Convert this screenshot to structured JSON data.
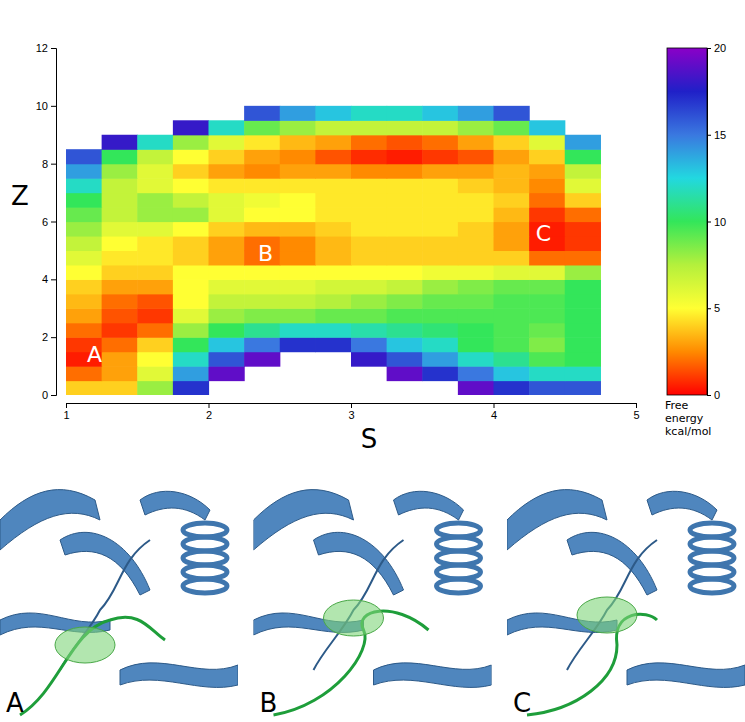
{
  "chart_data": {
    "type": "heatmap",
    "x_label": "S",
    "y_label": "Z",
    "xlim": [
      1,
      5
    ],
    "ylim": [
      0,
      12
    ],
    "xticks": [
      1,
      2,
      3,
      4,
      5
    ],
    "yticks": [
      0,
      2,
      4,
      6,
      8,
      10,
      12
    ],
    "s_edges": [
      1.0,
      1.25,
      1.5,
      1.75,
      2.0,
      2.25,
      2.5,
      2.75,
      3.0,
      3.25,
      3.5,
      3.75,
      4.0,
      4.25,
      4.5,
      4.75
    ],
    "z_edges": [
      0,
      0.5,
      1,
      1.5,
      2,
      2.5,
      3,
      3.5,
      4,
      4.5,
      5,
      5.5,
      6,
      6.5,
      7,
      7.5,
      8,
      8.5,
      9,
      9.5,
      10
    ],
    "cells": [
      [
        4,
        4,
        8,
        17,
        null,
        null,
        null,
        null,
        null,
        null,
        null,
        19,
        17,
        16,
        16
      ],
      [
        2,
        3,
        6,
        14,
        19,
        null,
        null,
        null,
        null,
        19,
        17,
        15,
        13,
        12,
        12
      ],
      [
        0.5,
        3,
        5,
        12,
        16,
        19,
        null,
        null,
        18,
        16,
        14,
        12,
        11,
        9.5,
        10
      ],
      [
        1,
        2,
        4,
        10,
        13,
        15,
        17,
        17,
        15,
        13,
        12,
        10,
        9.5,
        8.5,
        10
      ],
      [
        2,
        1,
        2,
        8,
        10,
        11,
        12,
        12,
        11.5,
        11,
        10.5,
        10,
        9.5,
        9,
        10
      ],
      [
        3,
        1.5,
        1,
        6,
        8,
        8.5,
        8.5,
        9,
        9,
        9.5,
        9.5,
        9.5,
        9.5,
        9.5,
        10
      ],
      [
        3.5,
        2,
        1.5,
        5,
        7,
        7,
        7,
        7.5,
        8,
        8.5,
        9,
        9,
        9.5,
        9.5,
        10
      ],
      [
        4,
        3,
        3,
        5,
        6,
        6,
        6,
        6.5,
        6.5,
        7,
        8,
        8.5,
        9,
        9,
        10
      ],
      [
        5,
        4,
        4,
        5,
        5,
        5,
        5,
        5,
        5,
        5,
        5.5,
        5.5,
        6,
        6,
        8
      ],
      [
        6,
        4.5,
        4.5,
        4,
        3,
        2,
        2.5,
        3.5,
        4,
        4,
        4,
        4,
        4,
        2,
        2
      ],
      [
        7,
        5,
        4.5,
        4,
        3,
        2,
        2.5,
        3.5,
        4,
        4,
        4,
        4,
        3,
        0.5,
        1
      ],
      [
        8,
        6,
        6,
        5,
        4,
        3.5,
        3.5,
        4,
        4.5,
        4.5,
        4.5,
        4,
        3,
        0.5,
        1
      ],
      [
        9,
        7,
        8,
        8,
        6,
        5,
        5,
        4.5,
        4.5,
        4.5,
        4.5,
        4.5,
        3.5,
        1,
        2
      ],
      [
        10,
        7,
        8,
        7,
        6,
        5.5,
        5,
        4.5,
        4.5,
        4.5,
        4.5,
        4.5,
        4,
        2,
        4
      ],
      [
        12,
        7,
        6,
        5,
        4.5,
        4.5,
        4.5,
        4.5,
        4.5,
        4.5,
        4.5,
        4,
        3.5,
        2.5,
        6
      ],
      [
        14,
        8,
        6,
        4,
        3,
        2.5,
        3,
        3,
        2.5,
        2.5,
        3,
        3,
        3.5,
        3,
        7
      ],
      [
        16,
        10,
        7,
        5,
        4,
        3,
        2.5,
        1.5,
        0.8,
        0.5,
        1,
        1.5,
        3,
        4,
        10
      ],
      [
        null,
        18,
        12,
        8,
        6,
        4.5,
        3.5,
        3,
        2,
        1.5,
        2,
        3,
        4,
        6,
        14
      ],
      [
        null,
        null,
        null,
        18,
        12,
        9,
        8,
        7,
        7,
        7,
        7,
        8,
        9,
        13,
        null
      ],
      [
        null,
        null,
        null,
        null,
        null,
        16,
        14,
        13,
        12,
        12,
        13,
        14,
        16,
        null,
        null
      ]
    ],
    "colorbar": {
      "range": [
        0,
        20
      ],
      "ticks": [
        0,
        5,
        10,
        15,
        20
      ],
      "label": "Free energy kcal/mol"
    },
    "annotations": [
      {
        "text": "A",
        "x": 1.2,
        "y": 1.4
      },
      {
        "text": "B",
        "x": 2.4,
        "y": 4.9
      },
      {
        "text": "C",
        "x": 4.35,
        "y": 5.6
      }
    ]
  },
  "image_panels": [
    {
      "label": "A"
    },
    {
      "label": "B"
    },
    {
      "label": "C"
    }
  ]
}
